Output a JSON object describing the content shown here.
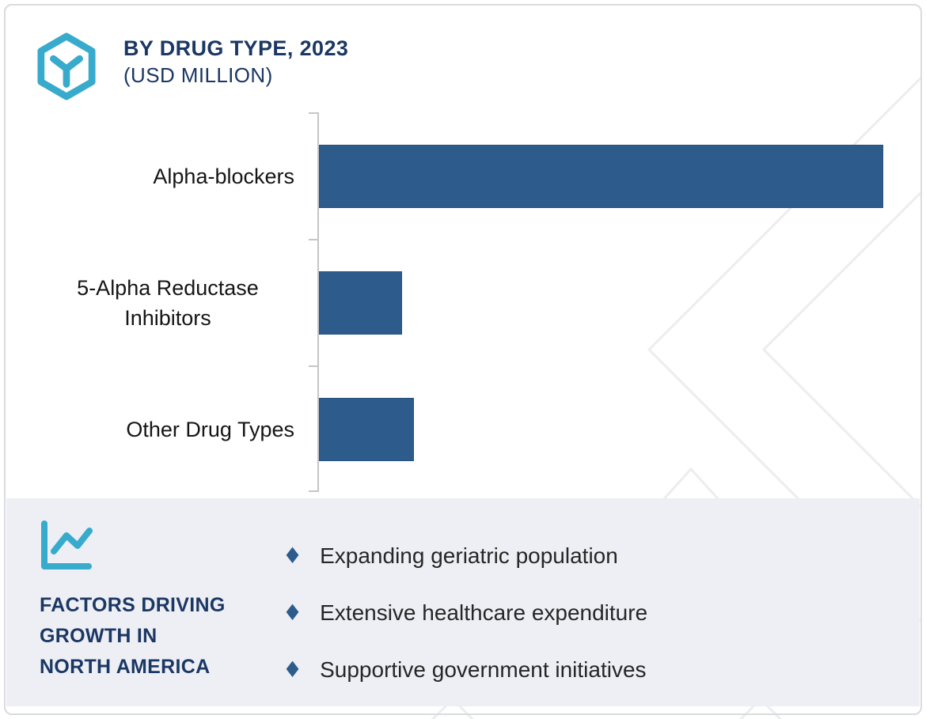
{
  "header": {
    "title": "BY DRUG TYPE, 2023",
    "subtitle": "(USD MILLION)"
  },
  "chart_data": {
    "type": "bar",
    "orientation": "horizontal",
    "title": "BY DRUG TYPE, 2023 (USD MILLION)",
    "categories": [
      "Alpha-blockers",
      "5-Alpha Reductase Inhibitors",
      "Other Drug Types"
    ],
    "values": [
      100,
      14.7,
      16.8
    ],
    "values_note": "x-axis unlabeled; values estimated as percent of largest bar",
    "xlabel": "",
    "ylabel": "",
    "xlim": [
      0,
      100
    ],
    "grid": false,
    "legend": false,
    "value_labels": false,
    "bar_color": "#2d5c8c"
  },
  "factors_panel": {
    "heading_lines": [
      "FACTORS DRIVING",
      "GROWTH IN",
      "NORTH AMERICA"
    ],
    "bullet_glyph": "♦",
    "bullets": [
      "Expanding geriatric population",
      "Extensive healthcare expenditure",
      "Supportive government initiatives"
    ]
  },
  "icons": {
    "logo": "hexagon-y-icon",
    "panel": "line-chart-icon",
    "bullet": "diamond-icon"
  },
  "colors": {
    "bar": "#2d5c8c",
    "navy_text": "#1b3764",
    "teal_accent": "#38abcc",
    "panel_background": "#edeff4",
    "axis": "#c6c6c6",
    "watermark": "#ededf0",
    "border": "#d9dbe0",
    "body_text": "#262626"
  }
}
